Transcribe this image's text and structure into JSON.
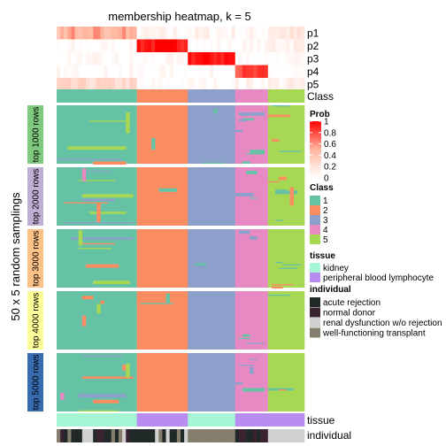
{
  "chart_data": {
    "type": "heatmap",
    "title": "membership heatmap, k = 5",
    "ylabel": "50 x 5 random samplings",
    "samples": 68,
    "row_labels": [
      "p1",
      "p2",
      "p3",
      "p4",
      "p5"
    ],
    "class_label": "Class",
    "tissue_label": "tissue",
    "individual_label": "individual",
    "column_groups": [
      {
        "cls": 1,
        "count": 22,
        "tissue": "kidney"
      },
      {
        "cls": 2,
        "count": 14,
        "tissue": "peripheral blood lymphocyte"
      },
      {
        "cls": 3,
        "count": 13,
        "tissue": "kidney"
      },
      {
        "cls": 4,
        "count": 9,
        "tissue": "peripheral blood lymphocyte"
      },
      {
        "cls": 5,
        "count": 10,
        "tissue": "peripheral blood lymphocyte"
      }
    ],
    "membership_prob": [
      [
        0.45,
        0.05,
        0.06,
        0.04,
        0.15
      ],
      [
        0.0,
        0.95,
        0.0,
        0.0,
        0.1
      ],
      [
        0.0,
        0.0,
        0.95,
        0.0,
        0.0
      ],
      [
        0.0,
        0.0,
        0.0,
        0.8,
        0.0
      ],
      [
        0.25,
        0.0,
        0.0,
        0.05,
        0.08
      ]
    ],
    "panels": [
      {
        "label": "top 1000 rows",
        "color": "#7fc97f"
      },
      {
        "label": "top 2000 rows",
        "color": "#beaed4"
      },
      {
        "label": "top 3000 rows",
        "color": "#fdc086"
      },
      {
        "label": "top 4000 rows",
        "color": "#ffff99"
      },
      {
        "label": "top 5000 rows",
        "color": "#386cb0"
      }
    ],
    "legend": {
      "prob": {
        "title": "Prob",
        "ticks": [
          "1",
          "0.8",
          "0.6",
          "0.4",
          "0.2",
          "0"
        ]
      },
      "class": {
        "title": "Class",
        "items": [
          {
            "label": "1",
            "color": "#66c2a5"
          },
          {
            "label": "2",
            "color": "#fc8d62"
          },
          {
            "label": "3",
            "color": "#8da0cb"
          },
          {
            "label": "4",
            "color": "#e78ac3"
          },
          {
            "label": "5",
            "color": "#a6d854"
          }
        ]
      },
      "tissue": {
        "title": "tissue",
        "items": [
          {
            "label": "kidney",
            "color": "#a6f5d5"
          },
          {
            "label": "peripheral blood lymphocyte",
            "color": "#b98cf0"
          }
        ]
      },
      "individual": {
        "title": "individual",
        "items": [
          {
            "label": "acute rejection",
            "color": "#202828"
          },
          {
            "label": "normal donor",
            "color": "#3a2330"
          },
          {
            "label": "renal dysfunction w/o rejection",
            "color": "#d0d0d0"
          },
          {
            "label": "well-functioning transplant",
            "color": "#857d6d"
          }
        ]
      }
    }
  }
}
